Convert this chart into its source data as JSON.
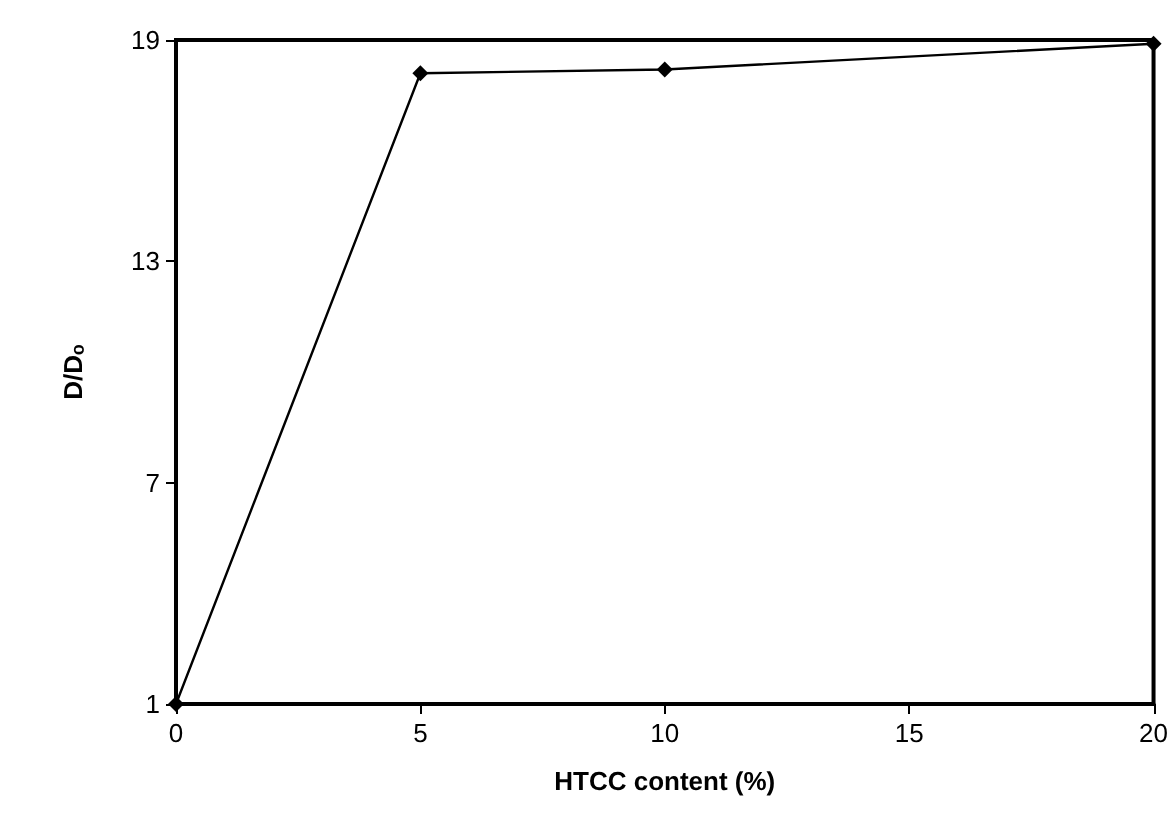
{
  "chart_data": {
    "type": "line",
    "xlabel": "HTCC content (%)",
    "ylabel": "D/Dₒ",
    "x": [
      0,
      5,
      10,
      20
    ],
    "series": [
      {
        "color": "#000000",
        "values": [
          1,
          18.1,
          18.2,
          18.9
        ]
      }
    ],
    "xlim": [
      0,
      20
    ],
    "xticks": [
      0,
      5,
      10,
      15,
      20
    ],
    "ylim": [
      1,
      19
    ],
    "yticks": [
      1,
      7,
      13,
      19
    ],
    "marker": "diamond",
    "line_style": "solid"
  }
}
